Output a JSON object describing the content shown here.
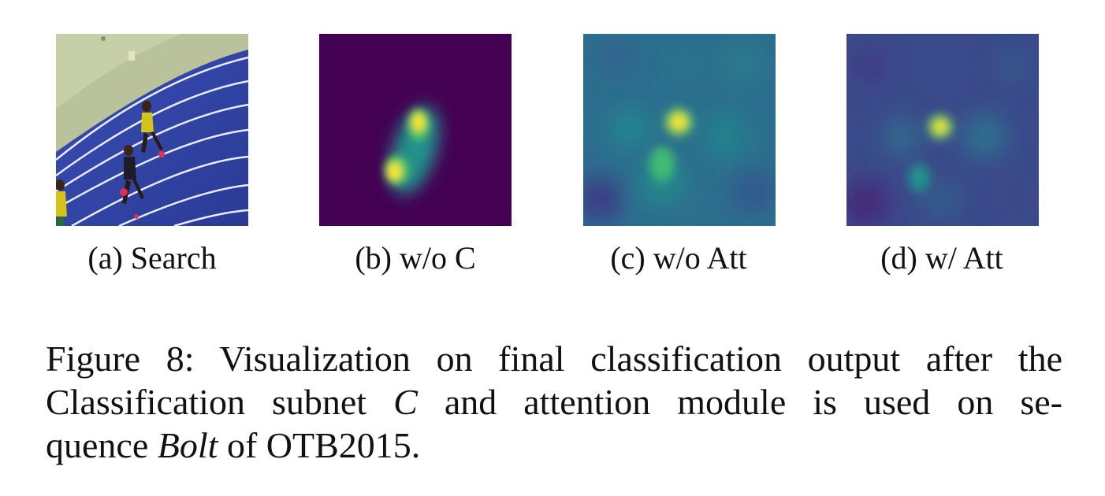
{
  "panels": [
    {
      "label": "(a)",
      "title": "Search"
    },
    {
      "label": "(b)",
      "title": "w/o C"
    },
    {
      "label": "(c)",
      "title": "w/o Att"
    },
    {
      "label": "(d)",
      "title": "w/ Att"
    }
  ],
  "caption": {
    "l1": "Figure 8: Visualization on final classification output after the",
    "l2_a": "Classification subnet ",
    "l2_b": "C",
    "l2_c": " and attention module is used on se-",
    "l3_a": "quence ",
    "l3_b": "Bolt",
    "l3_c": " of OTB2015."
  },
  "colors": {
    "viridis_dark": "#440154",
    "viridis_blue": "#3b528b",
    "viridis_teal": "#21918c",
    "viridis_green": "#5ec962",
    "viridis_yellow": "#fde725",
    "track_blue": "#2c3f9e",
    "infield_green": "#b9c29a"
  }
}
